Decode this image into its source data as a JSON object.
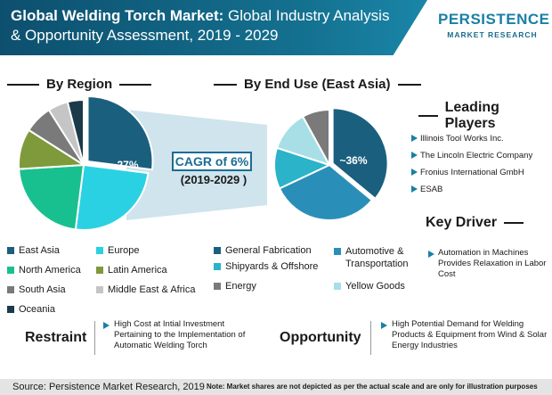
{
  "header": {
    "title_strong": "Global Welding Torch Market:",
    "title_rest": "Global Industry Analysis & Opportunity Assessment, 2019 - 2029"
  },
  "brand": {
    "name": "PERSISTENCE",
    "subtitle": "MARKET RESEARCH"
  },
  "chart_data": [
    {
      "type": "pie",
      "title": "By Region",
      "categories": [
        "East Asia",
        "Europe",
        "North America",
        "Latin America",
        "South Asia",
        "Middle East & Africa",
        "Oceania"
      ],
      "values": [
        27,
        25,
        22,
        10,
        7,
        5,
        4
      ],
      "colors": [
        "#1b5f7f",
        "#2ad1e2",
        "#19c08f",
        "#7e9a3a",
        "#7a7a7a",
        "#c5c5c5",
        "#1b3a4a"
      ],
      "data_label": "~27%",
      "highlighted": "East Asia"
    },
    {
      "type": "pie",
      "title": "By End Use (East Asia)",
      "categories": [
        "General Fabrication",
        "Automotive & Transportation",
        "Shipyards & Offshore",
        "Yellow Goods",
        "Energy"
      ],
      "values": [
        36,
        32,
        12,
        12,
        8
      ],
      "colors": [
        "#1b5f7f",
        "#2a8fb8",
        "#2ab3c9",
        "#a8dfe6",
        "#7a7a7a"
      ],
      "data_label": "~36%",
      "highlighted": "General Fabrication"
    }
  ],
  "cagr": {
    "label": "CAGR of 6%",
    "period": "(2019-2029 )"
  },
  "leading_players": {
    "heading": "Leading Players",
    "items": [
      "Illinois Tool Works Inc.",
      "The Lincoln Electric Company",
      "Fronius International GmbH",
      "ESAB"
    ]
  },
  "key_driver": {
    "heading": "Key Driver",
    "text": "Automation in Machines Provides Relaxation in Labor Cost"
  },
  "restraint": {
    "heading": "Restraint",
    "text": "High Cost at Intial Investment Pertaining to the Implementation of Automatic Welding Torch"
  },
  "opportunity": {
    "heading": "Opportunity",
    "text": "High Potential Demand for Welding Products & Equipment from Wind & Solar Energy Industries"
  },
  "footer": {
    "source": "Source: Persistence Market Research, 2019",
    "note": "Note: Market shares are not depicted as per the actual scale and are only for illustration purposes"
  }
}
